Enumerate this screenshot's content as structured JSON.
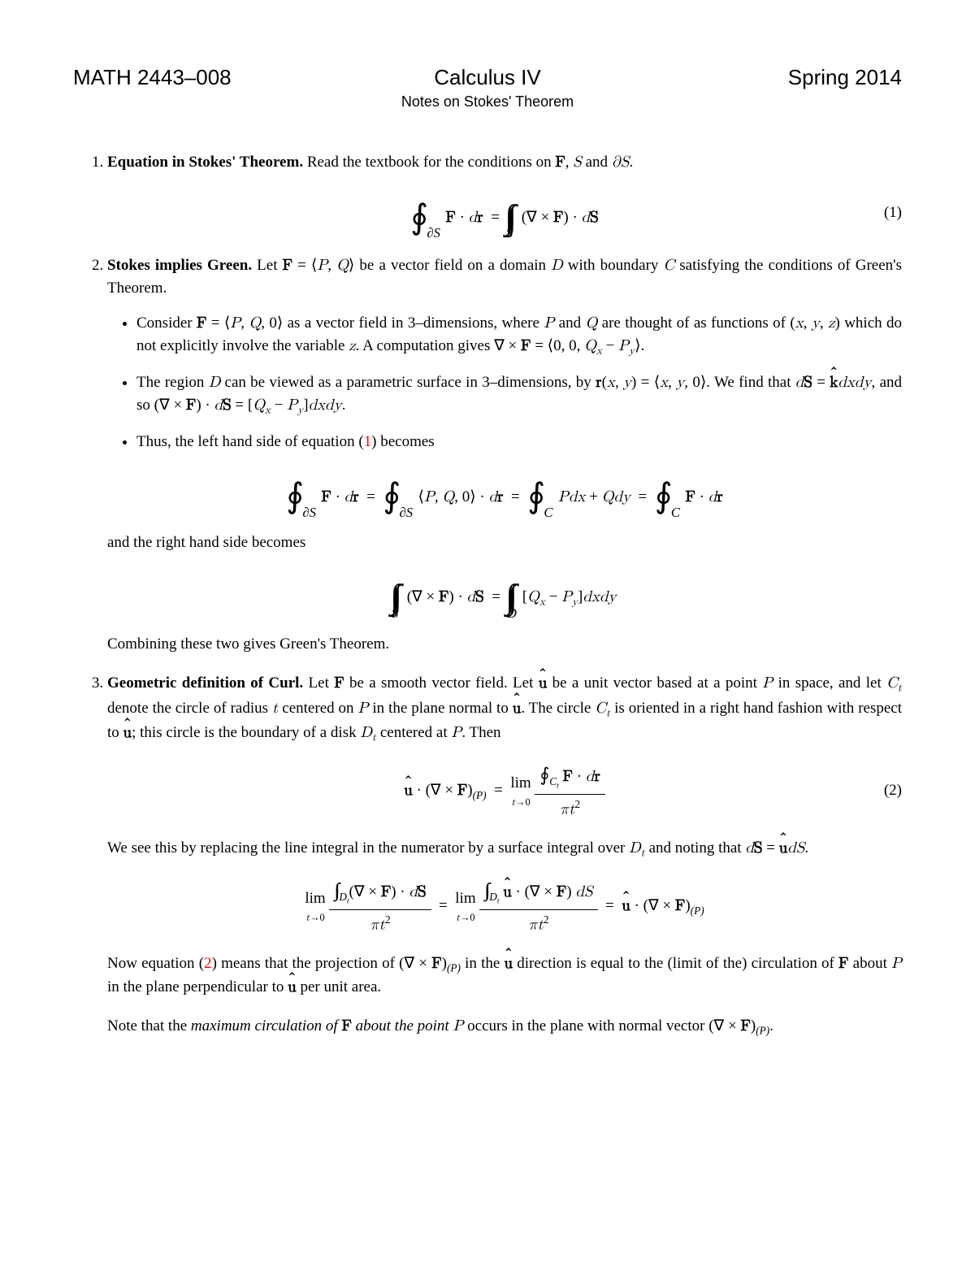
{
  "header": {
    "left": "MATH 2443–008",
    "center": "Calculus IV",
    "right": "Spring 2014",
    "subtitle": "Notes on Stokes' Theorem"
  },
  "item1": {
    "title": "Equation in Stokes' Theorem.",
    "text": " Read the textbook for the conditions on ",
    "text_end": ".",
    "eqnum": "(1)"
  },
  "item2": {
    "title": "Stokes implies Green.",
    "intro1": " Let ",
    "intro2": " be a vector field on a domain ",
    "intro3": " with boundary ",
    "intro4": " satisfying the conditions of Green's Theorem.",
    "b1a": "Consider ",
    "b1b": " as a vector field in 3–dimensions, where ",
    "b1c": " and ",
    "b1d": " are thought of as functions of ",
    "b1e": " which do not explicitly involve the variable ",
    "b1f": ". A computation gives ",
    "b1g": ".",
    "b2a": "The region ",
    "b2b": " can be viewed as a parametric surface in 3–dimensions, by ",
    "b2c": ". We find that ",
    "b2d": ", and so ",
    "b2e": ".",
    "b3a": "Thus, the left hand side of equation (",
    "b3ref": "1",
    "b3b": ") becomes",
    "mid": "and the right hand side becomes",
    "end": "Combining these two gives Green's Theorem."
  },
  "item3": {
    "title": "Geometric definition of Curl.",
    "p1a": " Let ",
    "p1b": " be a smooth vector field. Let ",
    "p1c": " be a unit vector based at a point ",
    "p1d": " in space, and let ",
    "p1e": " denote the circle of radius ",
    "p1f": " centered on ",
    "p1g": " in the plane normal to ",
    "p1h": ". The circle ",
    "p1i": " is oriented in a right hand fashion with respect to ",
    "p1j": "; this circle is the boundary of a disk ",
    "p1k": " centered at ",
    "p1l": ". Then",
    "eqnum": "(2)",
    "p2a": "We see this by replacing the line integral in the numerator by a surface integral over ",
    "p2b": " and noting that ",
    "p2c": ".",
    "p3a": "Now equation (",
    "p3ref": "2",
    "p3b": ") means that the projection of ",
    "p3c": " in the ",
    "p3d": " direction is equal to the (limit of the) circulation of ",
    "p3e": " about ",
    "p3f": " in the plane perpendicular to ",
    "p3g": " per unit area.",
    "p4a": "Note that the ",
    "p4ital": "maximum circulation of ",
    "p4ital2": " about the point ",
    "p4b": " occurs in the plane with normal vector ",
    "p4c": "."
  }
}
